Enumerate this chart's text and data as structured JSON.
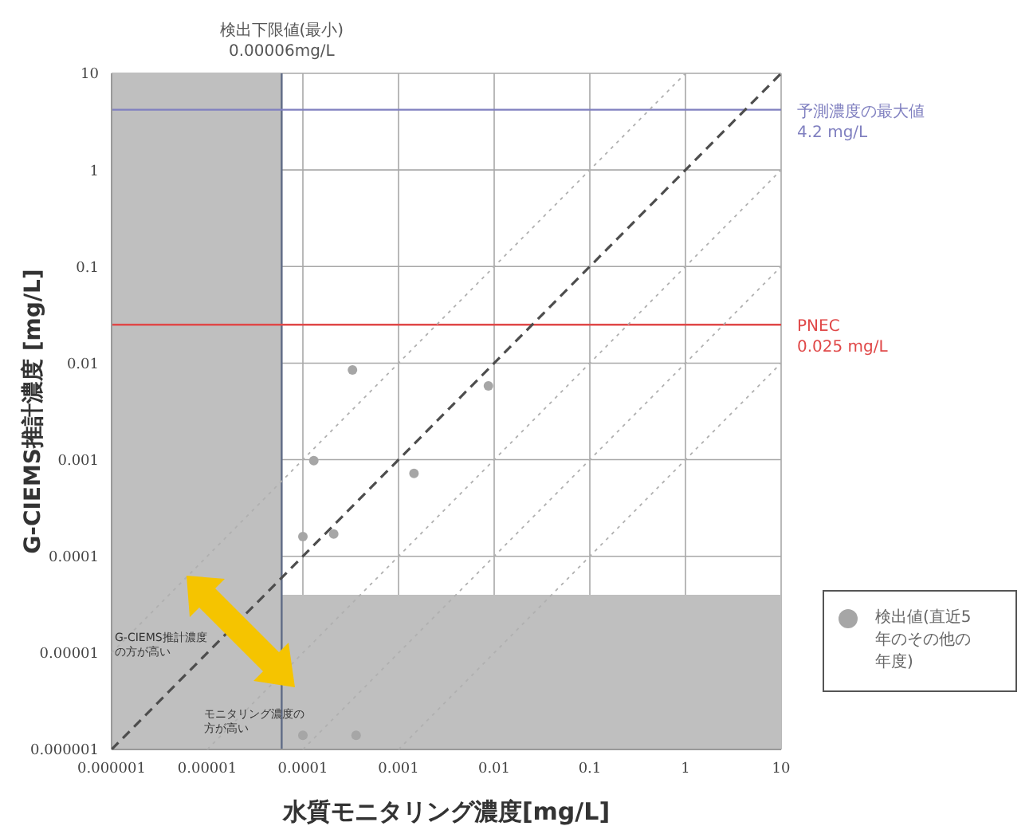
{
  "chart_data": {
    "type": "scatter",
    "xlabel": "水質モニタリング濃度[mg/L]",
    "ylabel": "G-CIEMS推計濃度 [mg/L]",
    "log": "xy",
    "xlim": [
      1e-06,
      10
    ],
    "ylim": [
      1e-06,
      10
    ],
    "xticks": [
      {
        "value": 1e-06,
        "label": "0.000001"
      },
      {
        "value": 1e-05,
        "label": "0.00001"
      },
      0.0001,
      0.001,
      0.01,
      0.1,
      1,
      10
    ],
    "yticks": [
      {
        "value": 1e-06,
        "label": "0.000001"
      },
      {
        "value": 1e-05,
        "label": "0.00001"
      },
      0.0001,
      0.001,
      0.01,
      0.1,
      1,
      10
    ],
    "grid": true,
    "legend": "right",
    "marker": "circle",
    "series": [
      {
        "name": "検出値(直近5年のその他の年度)",
        "type": "scatter",
        "color": "#a6a6a6",
        "x": [
          0.00033,
          0.0087,
          0.00013,
          0.00145,
          0.0001,
          0.00021,
          0.0001,
          0.00036
        ],
        "values": [
          0.0085,
          0.0058,
          0.00098,
          0.00072,
          0.00016,
          0.00017,
          1.4e-06,
          1.4e-06
        ]
      },
      {
        "type": "line",
        "marker": "none",
        "color": "#4d4d4d",
        "line_style": "dashed",
        "x": [
          1e-06,
          10
        ],
        "values": [
          1e-06,
          10
        ]
      },
      {
        "type": "line",
        "marker": "none",
        "color": "#b0b0b0",
        "line_style": "dotted",
        "x": [
          1e-06,
          1
        ],
        "values": [
          1e-05,
          10
        ]
      },
      {
        "type": "line",
        "marker": "none",
        "color": "#b0b0b0",
        "line_style": "dotted",
        "x": [
          1e-05,
          10
        ],
        "values": [
          1e-06,
          1
        ]
      },
      {
        "type": "line",
        "marker": "none",
        "color": "#b0b0b0",
        "line_style": "dotted",
        "x": [
          0.0001,
          10
        ],
        "values": [
          1e-06,
          0.1
        ]
      },
      {
        "type": "line",
        "marker": "none",
        "color": "#b0b0b0",
        "line_style": "dotted",
        "x": [
          0.001,
          10
        ],
        "values": [
          1e-06,
          0.01
        ]
      }
    ],
    "ref_lines": [
      {
        "axis": "x",
        "value": 6e-05,
        "label": "検出下限値(最小)\n0.00006mg/L",
        "color": "#5f6b86"
      },
      {
        "axis": "y",
        "value": 4.2,
        "label": "予測濃度の最大値\n4.2 mg/L",
        "color": "#8080c0"
      },
      {
        "axis": "y",
        "value": 0.025,
        "label": "PNEC\n0.025 mg/L",
        "color": "#e04848"
      }
    ],
    "bands": [
      {
        "axis": "x",
        "from": 1e-06,
        "to": 6e-05,
        "color": "#bfbfbf"
      },
      {
        "axis": "y",
        "from": 1e-06,
        "to": 4e-05,
        "color": "#bfbfbf"
      }
    ],
    "annotations": [
      "G-CIEMS推計濃度の方が高い",
      "モニタリング濃度の方が高い"
    ]
  }
}
